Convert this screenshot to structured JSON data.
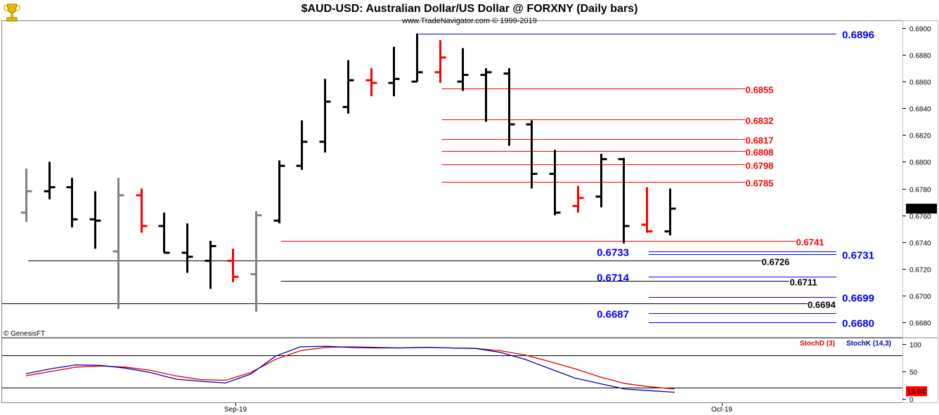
{
  "title": "$AUD-USD:  Australian Dollar/US Dollar @ FORXNY  (Daily bars)",
  "subtitle": "www.TradeNavigator.com © 1999-2019",
  "copyright": "© GenesisFT",
  "logo_icon": "trophy-icon",
  "colors": {
    "up": "#000000",
    "down": "#ff0000",
    "grey": "#808080",
    "blue_level": "#0000ff",
    "red_level": "#ff0000",
    "black_level": "#000000",
    "stoch_d": "#dd0000",
    "stoch_k": "#0000aa",
    "last_price_bg": "#000000",
    "last_stoch_bg": "#ff0000"
  },
  "chart_data": [
    {
      "type": "ohlc",
      "title": "$AUD-USD:  Australian Dollar/US Dollar @ FORXNY  (Daily bars)",
      "ylim": [
        0.6675,
        0.6905
      ],
      "y_ticks": [
        "0.6900",
        "0.6880",
        "0.6860",
        "0.6840",
        "0.6820",
        "0.6800",
        "0.6780",
        "0.6760",
        "0.6740",
        "0.6720",
        "0.6700",
        "0.6680"
      ],
      "x_labels": [
        "Sep-19",
        "Oct-19"
      ],
      "last_price": "0.6765",
      "bars": [
        {
          "o": 0.6762,
          "h": 0.6795,
          "l": 0.6755,
          "c": 0.6778,
          "color": "grey"
        },
        {
          "o": 0.6778,
          "h": 0.68,
          "l": 0.6772,
          "c": 0.6781,
          "color": "black"
        },
        {
          "o": 0.6781,
          "h": 0.6788,
          "l": 0.6751,
          "c": 0.6757,
          "color": "black"
        },
        {
          "o": 0.6757,
          "h": 0.6778,
          "l": 0.6735,
          "c": 0.6756,
          "color": "black"
        },
        {
          "o": 0.6733,
          "h": 0.6788,
          "l": 0.669,
          "c": 0.6775,
          "color": "grey"
        },
        {
          "o": 0.6775,
          "h": 0.678,
          "l": 0.6747,
          "c": 0.6752,
          "color": "red"
        },
        {
          "o": 0.6752,
          "h": 0.6762,
          "l": 0.6732,
          "c": 0.6732,
          "color": "black"
        },
        {
          "o": 0.6732,
          "h": 0.6754,
          "l": 0.6717,
          "c": 0.6729,
          "color": "black"
        },
        {
          "o": 0.6726,
          "h": 0.6741,
          "l": 0.6705,
          "c": 0.6737,
          "color": "black"
        },
        {
          "o": 0.6726,
          "h": 0.6735,
          "l": 0.671,
          "c": 0.6714,
          "color": "red"
        },
        {
          "o": 0.6716,
          "h": 0.6763,
          "l": 0.6688,
          "c": 0.676,
          "color": "grey"
        },
        {
          "o": 0.6756,
          "h": 0.6801,
          "l": 0.6754,
          "c": 0.6797,
          "color": "black"
        },
        {
          "o": 0.6797,
          "h": 0.6831,
          "l": 0.6794,
          "c": 0.6815,
          "color": "black"
        },
        {
          "o": 0.6815,
          "h": 0.6862,
          "l": 0.6807,
          "c": 0.6845,
          "color": "black"
        },
        {
          "o": 0.6841,
          "h": 0.6876,
          "l": 0.6836,
          "c": 0.6861,
          "color": "black"
        },
        {
          "o": 0.6861,
          "h": 0.687,
          "l": 0.6849,
          "c": 0.6859,
          "color": "red"
        },
        {
          "o": 0.6859,
          "h": 0.6886,
          "l": 0.6849,
          "c": 0.6862,
          "color": "black"
        },
        {
          "o": 0.686,
          "h": 0.6896,
          "l": 0.686,
          "c": 0.6867,
          "color": "black"
        },
        {
          "o": 0.6867,
          "h": 0.6891,
          "l": 0.6859,
          "c": 0.6878,
          "color": "red"
        },
        {
          "o": 0.686,
          "h": 0.6885,
          "l": 0.6853,
          "c": 0.6865,
          "color": "black"
        },
        {
          "o": 0.6865,
          "h": 0.687,
          "l": 0.683,
          "c": 0.6867,
          "color": "black"
        },
        {
          "o": 0.6866,
          "h": 0.687,
          "l": 0.6812,
          "c": 0.6828,
          "color": "black"
        },
        {
          "o": 0.6828,
          "h": 0.6831,
          "l": 0.678,
          "c": 0.6791,
          "color": "black"
        },
        {
          "o": 0.6791,
          "h": 0.6809,
          "l": 0.676,
          "c": 0.6762,
          "color": "black"
        },
        {
          "o": 0.6767,
          "h": 0.6782,
          "l": 0.6762,
          "c": 0.6773,
          "color": "red"
        },
        {
          "o": 0.6774,
          "h": 0.6806,
          "l": 0.6766,
          "c": 0.6802,
          "color": "black"
        },
        {
          "o": 0.6802,
          "h": 0.6803,
          "l": 0.6739,
          "c": 0.6752,
          "color": "black"
        },
        {
          "o": 0.6753,
          "h": 0.6781,
          "l": 0.6747,
          "c": 0.6748,
          "color": "red"
        },
        {
          "o": 0.6748,
          "h": 0.678,
          "l": 0.6745,
          "c": 0.6765,
          "color": "black"
        }
      ],
      "levels": [
        {
          "label": "0.6896",
          "value": 0.6896,
          "color": "blue",
          "from_bar": 17,
          "to_bar": 40.5,
          "label_side": "right"
        },
        {
          "label": "0.6855",
          "value": 0.6855,
          "color": "red",
          "from_bar": 18,
          "to_bar": 31.3,
          "label_side": "right"
        },
        {
          "label": "0.6832",
          "value": 0.6832,
          "color": "red",
          "from_bar": 18,
          "to_bar": 31.3,
          "label_side": "right"
        },
        {
          "label": "0.6817",
          "value": 0.6817,
          "color": "red",
          "from_bar": 18,
          "to_bar": 31.3,
          "label_side": "right"
        },
        {
          "label": "0.6808",
          "value": 0.6808,
          "color": "red",
          "from_bar": 18,
          "to_bar": 31.3,
          "label_side": "right"
        },
        {
          "label": "0.6798",
          "value": 0.6798,
          "color": "red",
          "from_bar": 18,
          "to_bar": 31.3,
          "label_side": "right"
        },
        {
          "label": "0.6785",
          "value": 0.6785,
          "color": "red",
          "from_bar": 18,
          "to_bar": 31.3,
          "label_side": "right"
        },
        {
          "label": "0.6741",
          "value": 0.6741,
          "color": "red",
          "from_bar": 11,
          "to_bar": 33.5,
          "label_side": "right"
        },
        {
          "label": "0.6733",
          "value": 0.6733,
          "color": "blue",
          "from_bar": 27,
          "to_bar": 40.5,
          "label_side": "left"
        },
        {
          "label": "0.6731",
          "value": 0.6731,
          "color": "blue",
          "from_bar": 27,
          "to_bar": 40.5,
          "label_side": "right"
        },
        {
          "label": "0.6726",
          "value": 0.6726,
          "color": "black",
          "from_bar": 0,
          "to_bar": 32,
          "label_side": "right"
        },
        {
          "label": "0.6714",
          "value": 0.6714,
          "color": "blue",
          "from_bar": 27,
          "to_bar": 40.5,
          "label_side": "left"
        },
        {
          "label": "0.6711",
          "value": 0.6711,
          "color": "black",
          "from_bar": 11,
          "to_bar": 33.2,
          "label_side": "right"
        },
        {
          "label": "0.6699",
          "value": 0.6699,
          "color": "blue",
          "from_bar": 27,
          "to_bar": 40.5,
          "label_side": "right"
        },
        {
          "label": "0.6694",
          "value": 0.6694,
          "color": "black",
          "from_bar": -1,
          "to_bar": 34,
          "label_side": "right"
        },
        {
          "label": "0.6687",
          "value": 0.6687,
          "color": "blue",
          "from_bar": 27,
          "to_bar": 40.5,
          "label_side": "left"
        },
        {
          "label": "0.6680",
          "value": 0.668,
          "color": "blue",
          "from_bar": 27,
          "to_bar": 40.5,
          "label_side": "right"
        }
      ]
    },
    {
      "type": "line",
      "series": [
        {
          "name": "StochD (3)",
          "color": "stoch_d",
          "values": [
            42,
            50,
            58,
            60,
            58,
            52,
            42,
            35,
            34,
            48,
            72,
            88,
            94,
            95,
            94,
            93,
            94,
            93,
            92,
            88,
            80,
            68,
            55,
            40,
            28,
            22,
            18
          ]
        },
        {
          "name": "StochK (14,3)",
          "color": "stoch_k",
          "values": [
            46,
            55,
            62,
            61,
            56,
            48,
            36,
            32,
            29,
            45,
            78,
            95,
            96,
            94,
            93,
            93,
            94,
            93,
            92,
            85,
            72,
            55,
            38,
            28,
            18,
            15,
            12
          ]
        }
      ],
      "ylim": [
        0,
        100
      ],
      "y_ticks": [
        "100",
        "50",
        "0"
      ],
      "last_value": "13.94"
    }
  ]
}
